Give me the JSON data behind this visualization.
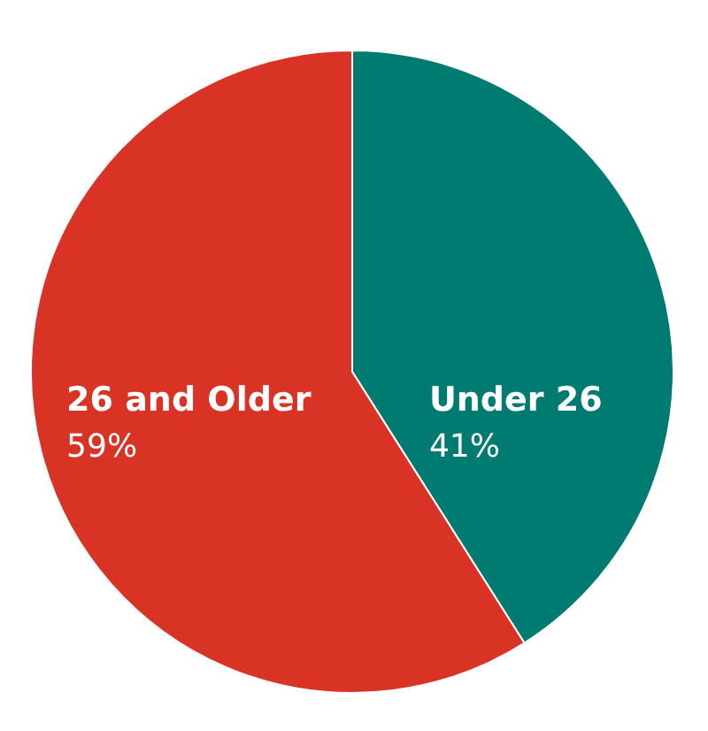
{
  "chart_data": {
    "type": "pie",
    "categories": [
      "Under 26",
      "26 and Older"
    ],
    "values": [
      41,
      59
    ],
    "colors": [
      "#007b72",
      "#d93326"
    ],
    "value_labels": [
      "41%",
      "59%"
    ],
    "legend": false
  }
}
